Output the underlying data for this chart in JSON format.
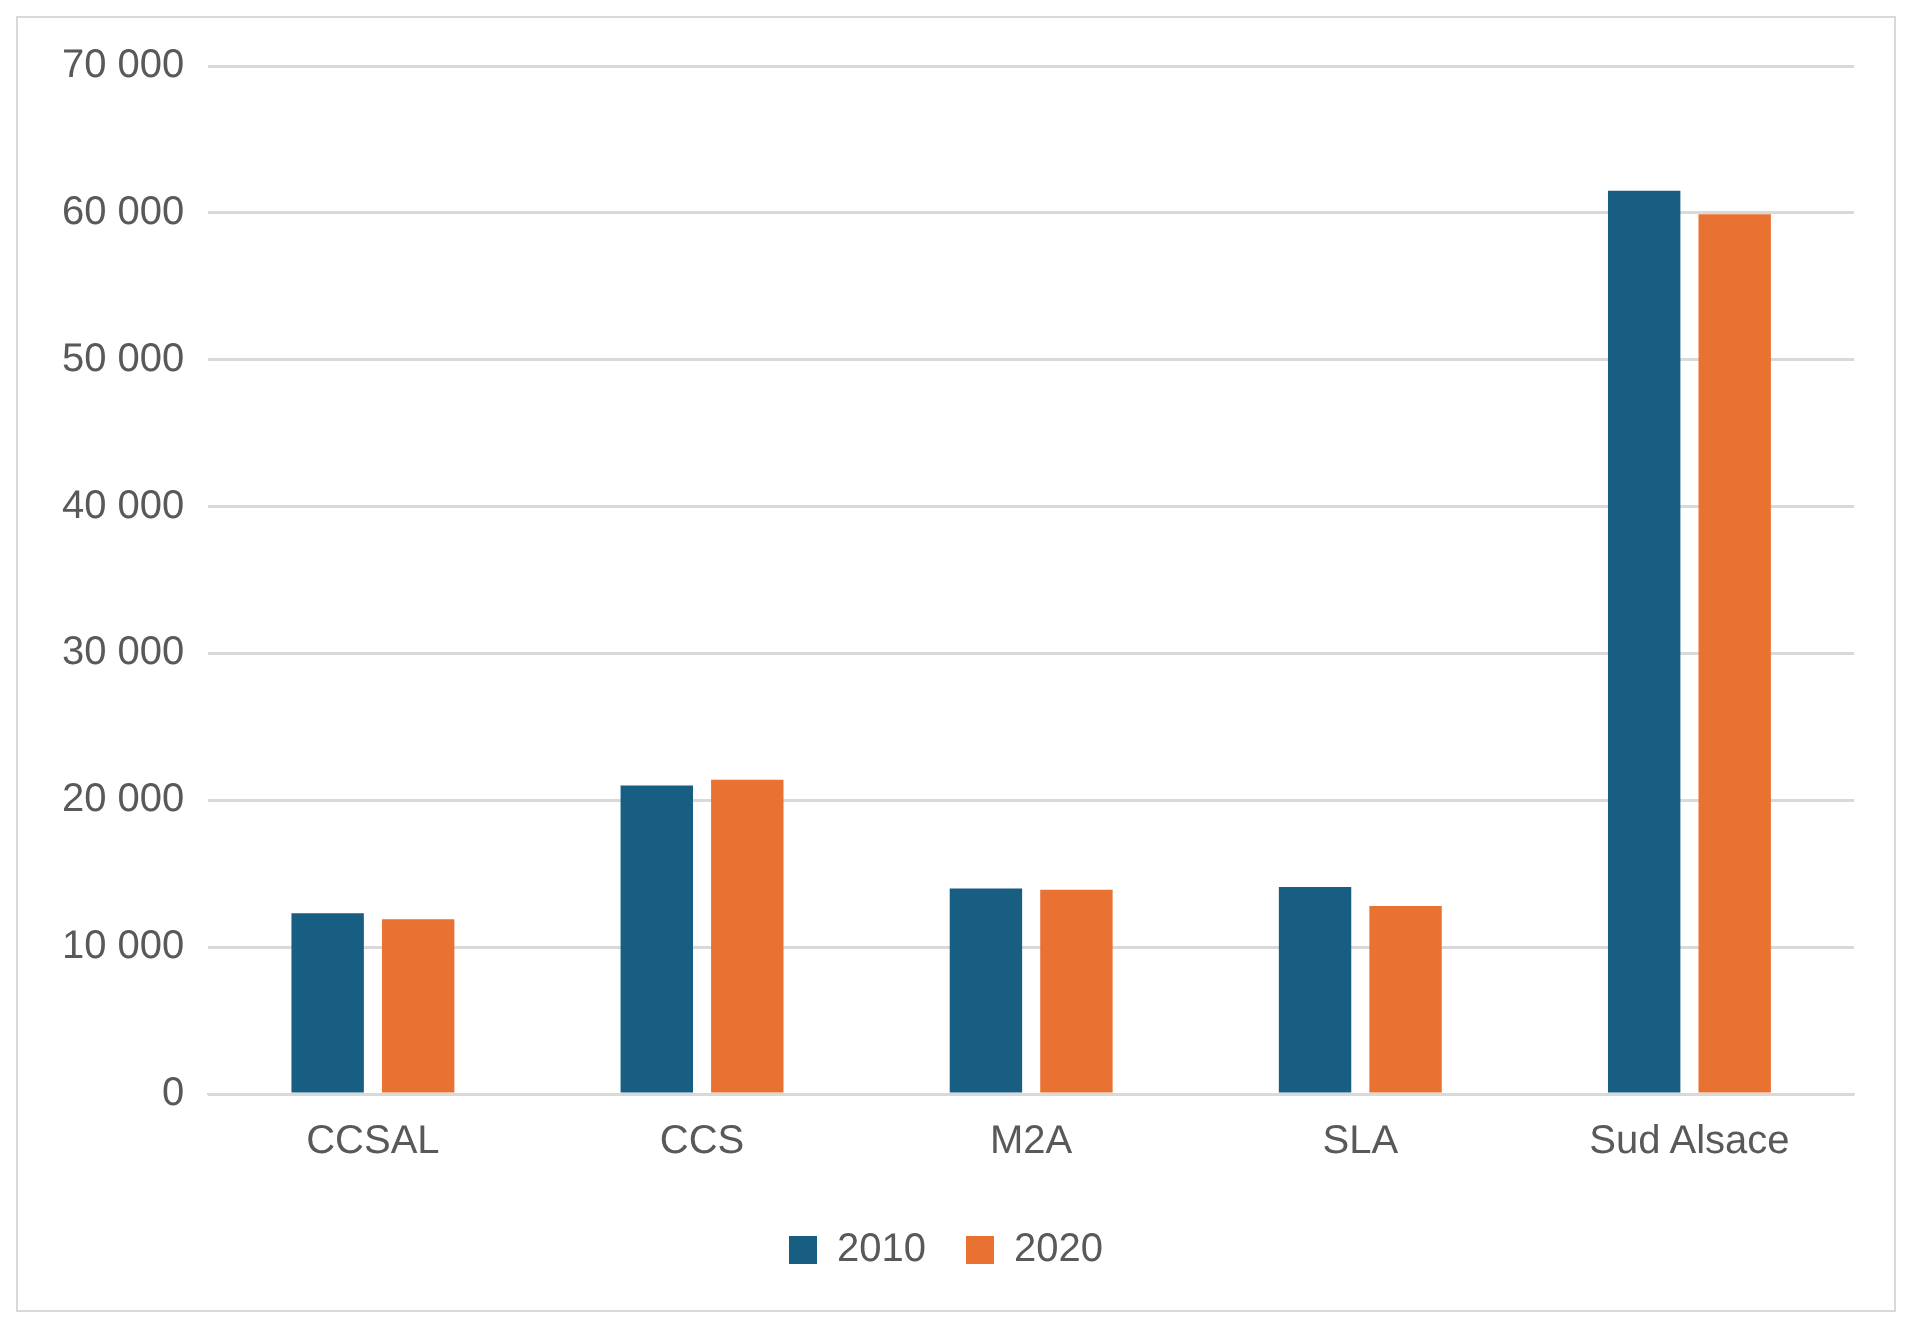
{
  "chart_data": {
    "type": "bar",
    "categories": [
      "CCSAL",
      "CCS",
      "M2A",
      "SLA",
      "Sud Alsace"
    ],
    "series": [
      {
        "name": "2010",
        "color": "#175e82",
        "values": [
          12300,
          21000,
          14000,
          14100,
          61500
        ]
      },
      {
        "name": "2020",
        "color": "#e97132",
        "values": [
          11900,
          21400,
          13900,
          12800,
          59900
        ]
      }
    ],
    "ylim": [
      0,
      70000
    ],
    "yticks": [
      {
        "value": 0,
        "label": "0"
      },
      {
        "value": 10000,
        "label": "10 000"
      },
      {
        "value": 20000,
        "label": "20 000"
      },
      {
        "value": 30000,
        "label": "30 000"
      },
      {
        "value": 40000,
        "label": "40 000"
      },
      {
        "value": 50000,
        "label": "50 000"
      },
      {
        "value": 60000,
        "label": "60 000"
      },
      {
        "value": 70000,
        "label": "70 000"
      }
    ],
    "grid": "y",
    "legend": "bottom"
  }
}
